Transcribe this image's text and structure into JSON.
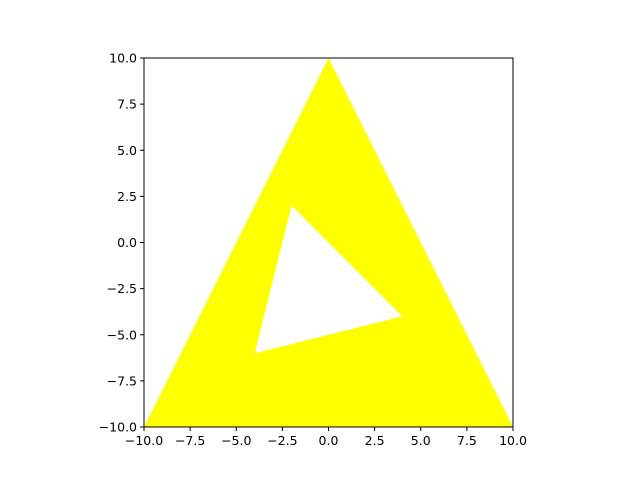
{
  "chart_data": {
    "type": "area",
    "title": "",
    "xlabel": "",
    "ylabel": "",
    "xlim": [
      -10,
      10
    ],
    "ylim": [
      -10,
      10
    ],
    "grid": false,
    "fill_color": "#ffff00",
    "background_color": "#ffffff",
    "xticks": [
      -10.0,
      -7.5,
      -5.0,
      -2.5,
      0.0,
      2.5,
      5.0,
      7.5,
      10.0
    ],
    "yticks": [
      -10.0,
      -7.5,
      -5.0,
      -2.5,
      0.0,
      2.5,
      5.0,
      7.5,
      10.0
    ],
    "xtick_labels": [
      "−10.0",
      "−7.5",
      "−5.0",
      "−2.5",
      "0.0",
      "2.5",
      "5.0",
      "7.5",
      "10.0"
    ],
    "ytick_labels": [
      "−10.0",
      "−7.5",
      "−5.0",
      "−2.5",
      "0.0",
      "2.5",
      "5.0",
      "7.5",
      "10.0"
    ],
    "shape": {
      "outer": [
        [
          -10,
          -10
        ],
        [
          0,
          10
        ],
        [
          10,
          -10
        ]
      ],
      "hole": [
        [
          -2,
          2
        ],
        [
          4,
          -4
        ],
        [
          -4,
          -6
        ]
      ]
    }
  }
}
